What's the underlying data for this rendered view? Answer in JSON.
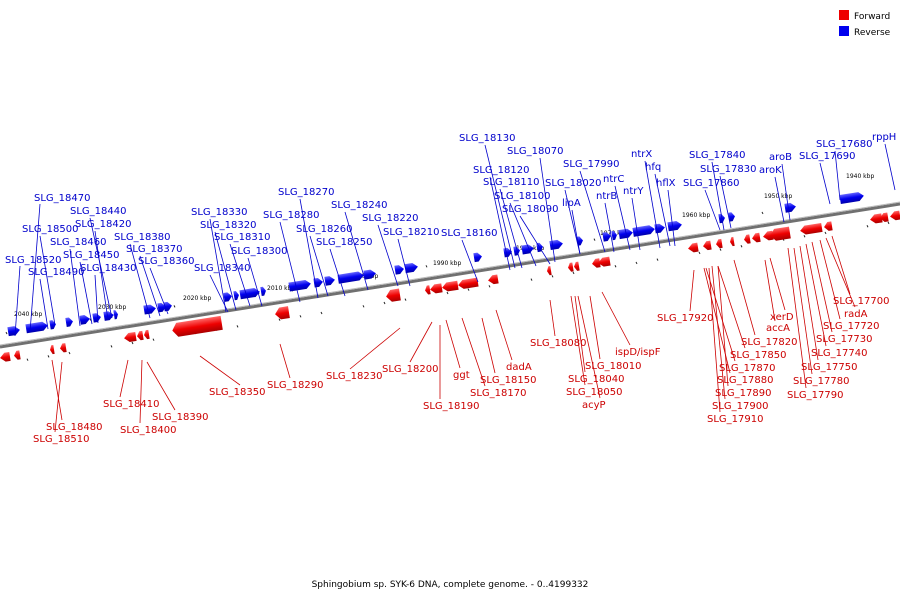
{
  "legend": {
    "forward_label": "Forward",
    "reverse_label": "Reverse",
    "forward_color": "#ee0000",
    "reverse_color": "#0000ee"
  },
  "caption": "Sphingobium sp. SYK-6 DNA, complete genome. - 0..4199332",
  "ticks": [
    "2040 kbp",
    "2030 kbp",
    "2020 kbp",
    "2010 kbp",
    "2000 kbp",
    "1990 kbp",
    "1980 kbp",
    "1970 kbp",
    "1960 kbp",
    "1950 kbp",
    "1940 kbp"
  ],
  "reverse_labels": [
    "SLG_18470",
    "SLG_18500",
    "SLG_18520",
    "SLG_18440",
    "SLG_18420",
    "SLG_18460",
    "SLG_18490",
    "SLG_18450",
    "SLG_18430",
    "SLG_18380",
    "SLG_18370",
    "SLG_18360",
    "SLG_18330",
    "SLG_18320",
    "SLG_18310",
    "SLG_18340",
    "SLG_18300",
    "SLG_18270",
    "SLG_18280",
    "SLG_18260",
    "SLG_18250",
    "SLG_18240",
    "SLG_18220",
    "SLG_18210",
    "SLG_18160",
    "SLG_18130",
    "SLG_18120",
    "SLG_18110",
    "SLG_18100",
    "SLG_18090",
    "SLG_18070",
    "SLG_18020",
    "SLG_17990",
    "lipA",
    "ntrC",
    "ntrB",
    "ntrX",
    "hfq",
    "ntrY",
    "hflX",
    "SLG_17840",
    "SLG_17830",
    "SLG_17860",
    "aroB",
    "aroK",
    "SLG_17680",
    "SLG_17690",
    "rppH"
  ],
  "forward_labels": [
    "SLG_18480",
    "SLG_18510",
    "SLG_18410",
    "SLG_18400",
    "SLG_18390",
    "SLG_18350",
    "SLG_18290",
    "SLG_18230",
    "SLG_18200",
    "ggt",
    "SLG_18190",
    "SLG_18170",
    "SLG_18150",
    "dadA",
    "SLG_18080",
    "SLG_18010",
    "SLG_18040",
    "SLG_18050",
    "acyP",
    "ispD/ispF",
    "SLG_17920",
    "SLG_17870",
    "SLG_17880",
    "SLG_17890",
    "SLG_17900",
    "SLG_17910",
    "SLG_17850",
    "SLG_17820",
    "accA",
    "xerD",
    "SLG_17700",
    "radA",
    "SLG_17720",
    "SLG_17730",
    "SLG_17740",
    "SLG_17750",
    "SLG_17780",
    "SLG_17790"
  ]
}
